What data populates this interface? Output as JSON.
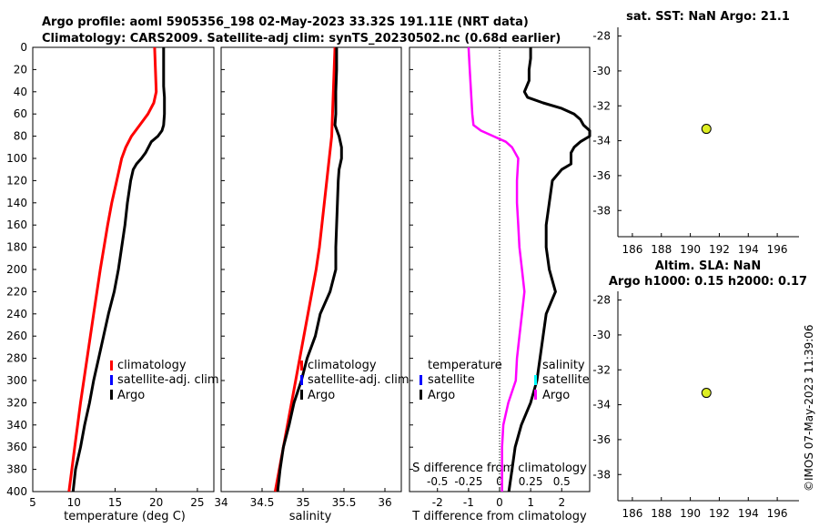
{
  "header": {
    "title_line1": "Argo profile: aoml 5905356_198 02-May-2023 33.32S 191.11E (NRT data)",
    "title_line2": "Climatology: CARS2009. Satellite-adj clim: synTS_20230502.nc (0.68d earlier)",
    "watermark": "©IMOS 07-May-2023 11:39:06"
  },
  "colors": {
    "climatology": "#ff0000",
    "satellite": "#0000ff",
    "argo": "#000000",
    "salinity_diff": "#ff00ff",
    "sat_salinity_marker": "#00ffff",
    "location_marker": "#ddee22"
  },
  "chart_data": [
    {
      "id": "temperature",
      "type": "line",
      "xlabel": "temperature (deg C)",
      "ylabel": "",
      "xlim": [
        5,
        27
      ],
      "ylim": [
        400,
        0
      ],
      "xticks": [
        5,
        10,
        15,
        20,
        25
      ],
      "xticklabels": [
        "5",
        "10",
        "15",
        "20",
        "25"
      ],
      "yticks": [
        0,
        20,
        40,
        60,
        80,
        100,
        120,
        140,
        160,
        180,
        200,
        220,
        240,
        260,
        280,
        300,
        320,
        340,
        360,
        380,
        400
      ],
      "legend": [
        "climatology",
        "satellite-adj. clim",
        "Argo"
      ],
      "series": [
        {
          "name": "climatology",
          "color": "#ff0000",
          "depth": [
            0,
            20,
            40,
            50,
            60,
            70,
            80,
            90,
            100,
            120,
            140,
            160,
            200,
            240,
            280,
            320,
            360,
            400
          ],
          "values": [
            19.8,
            19.9,
            20.0,
            19.7,
            19.0,
            18.0,
            17.0,
            16.3,
            15.8,
            15.2,
            14.6,
            14.1,
            13.2,
            12.4,
            11.6,
            10.8,
            10.1,
            9.4
          ]
        },
        {
          "name": "Argo",
          "color": "#000000",
          "depth": [
            0,
            20,
            35,
            45,
            60,
            70,
            75,
            80,
            85,
            95,
            100,
            105,
            110,
            120,
            140,
            160,
            180,
            200,
            220,
            240,
            260,
            280,
            300,
            320,
            340,
            360,
            380,
            400
          ],
          "values": [
            20.9,
            20.9,
            20.9,
            21.0,
            21.0,
            20.9,
            20.7,
            20.2,
            19.4,
            18.7,
            18.2,
            17.6,
            17.2,
            16.9,
            16.5,
            16.2,
            15.8,
            15.4,
            14.9,
            14.2,
            13.6,
            13.0,
            12.4,
            11.9,
            11.3,
            10.8,
            10.2,
            9.9
          ]
        }
      ]
    },
    {
      "id": "salinity",
      "type": "line",
      "xlabel": "salinity",
      "xlim": [
        34,
        36.2
      ],
      "ylim": [
        400,
        0
      ],
      "xticks": [
        34,
        34.5,
        35,
        35.5,
        36
      ],
      "xticklabels": [
        "34",
        "34.5",
        "35",
        "35.5",
        "36"
      ],
      "legend": [
        "climatology",
        "satellite-adj. clim",
        "Argo"
      ],
      "series": [
        {
          "name": "climatology",
          "color": "#ff0000",
          "depth": [
            0,
            20,
            40,
            60,
            80,
            100,
            120,
            140,
            160,
            180,
            200,
            220,
            240,
            260,
            280,
            300,
            320,
            340,
            360,
            380,
            400
          ],
          "values": [
            35.39,
            35.38,
            35.37,
            35.36,
            35.35,
            35.32,
            35.29,
            35.26,
            35.23,
            35.2,
            35.16,
            35.11,
            35.06,
            35.01,
            34.96,
            34.91,
            34.86,
            34.81,
            34.76,
            34.71,
            34.66
          ]
        },
        {
          "name": "Argo",
          "color": "#000000",
          "depth": [
            0,
            20,
            40,
            60,
            70,
            80,
            90,
            100,
            110,
            120,
            140,
            160,
            180,
            200,
            220,
            240,
            260,
            280,
            300,
            320,
            340,
            360,
            380,
            400
          ],
          "values": [
            35.41,
            35.41,
            35.4,
            35.4,
            35.39,
            35.44,
            35.47,
            35.47,
            35.44,
            35.43,
            35.42,
            35.41,
            35.4,
            35.4,
            35.33,
            35.21,
            35.15,
            35.05,
            34.98,
            34.89,
            34.83,
            34.76,
            34.72,
            34.69
          ]
        }
      ]
    },
    {
      "id": "difference",
      "type": "line",
      "xlabel": "T difference from climatology",
      "xlabel_top": "S difference from climatology",
      "xlim": [
        -2.9,
        2.9
      ],
      "ylim": [
        400,
        0
      ],
      "xticks": [
        -2,
        -1,
        0,
        1,
        2
      ],
      "xticklabels": [
        "-2",
        "-1",
        "0",
        "1",
        "2"
      ],
      "xticks_top": [
        -0.5,
        -0.25,
        0,
        0.25,
        0.5
      ],
      "xticklabels_top": [
        "-0.5",
        "-0.25",
        "0",
        "0.25",
        "0.5"
      ],
      "legend_left_title": "temperature",
      "legend_right_title": "salinity",
      "legend_left": [
        "satellite",
        "Argo"
      ],
      "legend_right": [
        "satellite",
        "Argo"
      ],
      "series": [
        {
          "name": "T diff Argo",
          "color": "#000000",
          "depth": [
            0,
            10,
            20,
            30,
            40,
            45,
            50,
            55,
            60,
            65,
            70,
            75,
            80,
            85,
            90,
            95,
            100,
            105,
            110,
            120,
            140,
            160,
            180,
            200,
            220,
            240,
            260,
            280,
            300,
            320,
            340,
            360,
            380,
            400
          ],
          "values": [
            1.0,
            1.0,
            0.95,
            0.95,
            0.8,
            0.9,
            1.4,
            2.0,
            2.4,
            2.6,
            2.7,
            2.9,
            2.9,
            2.6,
            2.4,
            2.3,
            2.3,
            2.3,
            2.0,
            1.7,
            1.6,
            1.5,
            1.5,
            1.6,
            1.8,
            1.5,
            1.4,
            1.3,
            1.2,
            1.0,
            0.7,
            0.5,
            0.4,
            0.3
          ]
        },
        {
          "name": "S diff Argo",
          "color": "#ff00ff",
          "depth": [
            0,
            20,
            40,
            60,
            70,
            75,
            80,
            85,
            90,
            100,
            120,
            140,
            160,
            180,
            200,
            220,
            240,
            260,
            280,
            300,
            320,
            340,
            360,
            380,
            400
          ],
          "values": [
            -0.25,
            -0.24,
            -0.23,
            -0.22,
            -0.21,
            -0.15,
            -0.05,
            0.05,
            0.1,
            0.15,
            0.14,
            0.14,
            0.15,
            0.16,
            0.18,
            0.2,
            0.18,
            0.16,
            0.14,
            0.13,
            0.07,
            0.03,
            0.02,
            0.02,
            0.02
          ]
        }
      ]
    },
    {
      "id": "map_sst",
      "type": "scatter",
      "title": "sat. SST: NaN Argo: 21.1",
      "xlim": [
        185,
        197.5
      ],
      "ylim": [
        -39.5,
        -27.5
      ],
      "xticks": [
        186,
        188,
        190,
        192,
        194,
        196
      ],
      "yticks": [
        -28,
        -30,
        -32,
        -34,
        -36,
        -38
      ],
      "points": [
        {
          "x": 191.11,
          "y": -33.32
        }
      ]
    },
    {
      "id": "map_sla",
      "type": "scatter",
      "title_line1": "Altim. SLA: NaN",
      "title_line2": "Argo h1000: 0.15 h2000: 0.17",
      "xlim": [
        185,
        197.5
      ],
      "ylim": [
        -39.5,
        -27.5
      ],
      "xticks": [
        186,
        188,
        190,
        192,
        194,
        196
      ],
      "yticks": [
        -28,
        -30,
        -32,
        -34,
        -36,
        -38
      ],
      "points": [
        {
          "x": 191.11,
          "y": -33.32
        }
      ]
    }
  ]
}
